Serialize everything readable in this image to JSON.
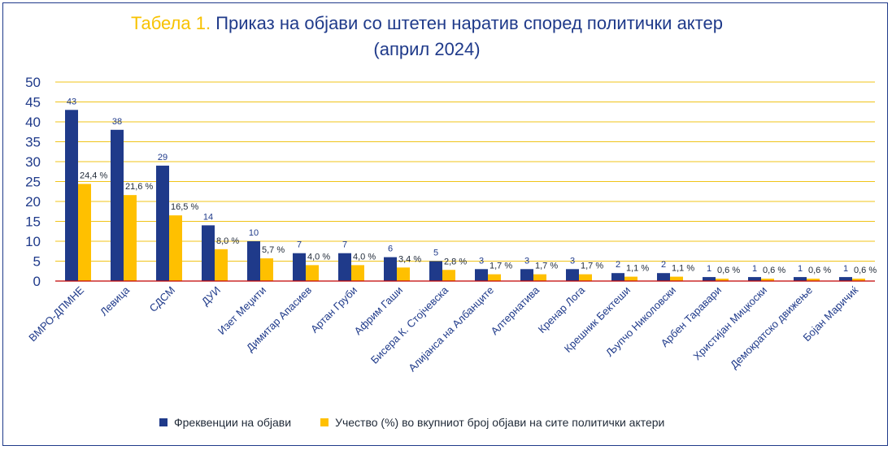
{
  "header": {
    "title_prefix": "Табела 1.",
    "title_main": "Приказ на објави со штетен наратив според политички актер",
    "subtitle": "(април 2024)"
  },
  "colors": {
    "frequency": "#1f3a8a",
    "share": "#ffc000",
    "gridline": "#f0c419",
    "axis": "#c00000",
    "text": "#1f3a8a"
  },
  "chart_data": {
    "type": "bar",
    "title": "Табела 1. Приказ на објави со штетен наратив според политички актер (април 2024)",
    "categories": [
      "ВМРО-ДПМНЕ",
      "Левица",
      "СДСМ",
      "ДУИ",
      "Изет Меџити",
      "Димитар Апасиев",
      "Артан Груби",
      "Африм Гаши",
      "Бисера К. Стојчевска",
      "Алијанса на Албанците",
      "Алтернатива",
      "Кренар Лога",
      "Крешник Бектеши",
      "Љупчо Николовски",
      "Арбен Таравари",
      "Христијан Мицкоски",
      "Демократско движење",
      "Бојан Маричиќ"
    ],
    "series": [
      {
        "name": "Фреквенции на објави",
        "values": [
          43,
          38,
          29,
          14,
          10,
          7,
          7,
          6,
          5,
          3,
          3,
          3,
          2,
          2,
          1,
          1,
          1,
          1
        ],
        "labels": [
          "43",
          "38",
          "29",
          "14",
          "10",
          "7",
          "7",
          "6",
          "5",
          "3",
          "3",
          "3",
          "2",
          "2",
          "1",
          "1",
          "1",
          "1"
        ]
      },
      {
        "name": "Учество (%) во вкупниот број објави на сите политички актери",
        "values": [
          24.4,
          21.6,
          16.5,
          8.0,
          5.7,
          4.0,
          4.0,
          3.4,
          2.8,
          1.7,
          1.7,
          1.7,
          1.1,
          1.1,
          0.6,
          0.6,
          0.6,
          0.6
        ],
        "labels": [
          "24,4 %",
          "21,6 %",
          "16,5 %",
          "8,0 %",
          "5,7 %",
          "4,0 %",
          "4,0 %",
          "3,4 %",
          "2,8 %",
          "1,7 %",
          "1,7 %",
          "1,7 %",
          "1,1 %",
          "1,1 %",
          "0,6 %",
          "0,6 %",
          "0,6 %",
          "0,6 %"
        ]
      }
    ],
    "y_ticks": [
      "0",
      "5",
      "10",
      "15",
      "20",
      "25",
      "30",
      "35",
      "40",
      "45",
      "50"
    ],
    "ylim": [
      0,
      50
    ],
    "grid": true,
    "legend_position": "bottom"
  }
}
